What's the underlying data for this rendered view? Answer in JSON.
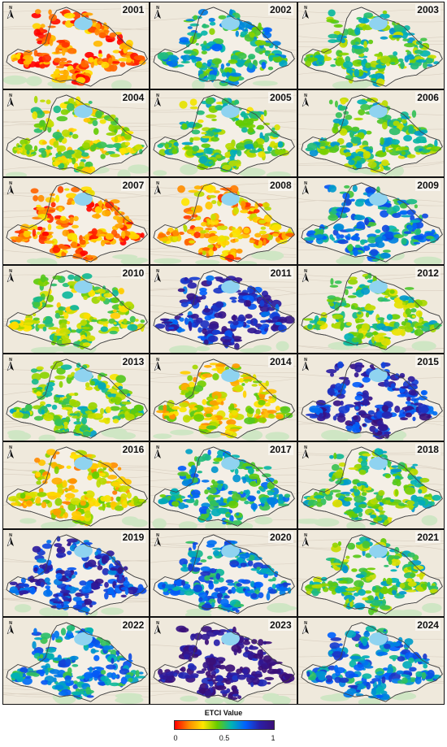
{
  "panels": [
    {
      "year": "2001",
      "level": 0.12
    },
    {
      "year": "2002",
      "level": 0.55
    },
    {
      "year": "2003",
      "level": 0.48
    },
    {
      "year": "2004",
      "level": 0.38
    },
    {
      "year": "2005",
      "level": 0.45
    },
    {
      "year": "2006",
      "level": 0.47
    },
    {
      "year": "2007",
      "level": 0.15
    },
    {
      "year": "2008",
      "level": 0.2
    },
    {
      "year": "2009",
      "level": 0.62
    },
    {
      "year": "2010",
      "level": 0.4
    },
    {
      "year": "2011",
      "level": 0.82
    },
    {
      "year": "2012",
      "level": 0.46
    },
    {
      "year": "2013",
      "level": 0.45
    },
    {
      "year": "2014",
      "level": 0.3
    },
    {
      "year": "2015",
      "level": 0.84
    },
    {
      "year": "2016",
      "level": 0.28
    },
    {
      "year": "2017",
      "level": 0.58
    },
    {
      "year": "2018",
      "level": 0.47
    },
    {
      "year": "2019",
      "level": 0.8
    },
    {
      "year": "2020",
      "level": 0.66
    },
    {
      "year": "2021",
      "level": 0.47
    },
    {
      "year": "2022",
      "level": 0.63
    },
    {
      "year": "2023",
      "level": 0.96
    },
    {
      "year": "2024",
      "level": 0.66
    }
  ],
  "legend": {
    "title": "ETCI Value",
    "ticks": [
      "0",
      "0.5",
      "1"
    ],
    "colors": [
      "#ff0000",
      "#ff8a00",
      "#ffe600",
      "#66cc00",
      "#00b4b4",
      "#0060ff",
      "#2a1fa8",
      "#3b0f78"
    ]
  },
  "colors": {
    "background": "#efe9dc",
    "water": "#8fd3f0",
    "border": "#444444",
    "panel_gap": "#111111"
  }
}
